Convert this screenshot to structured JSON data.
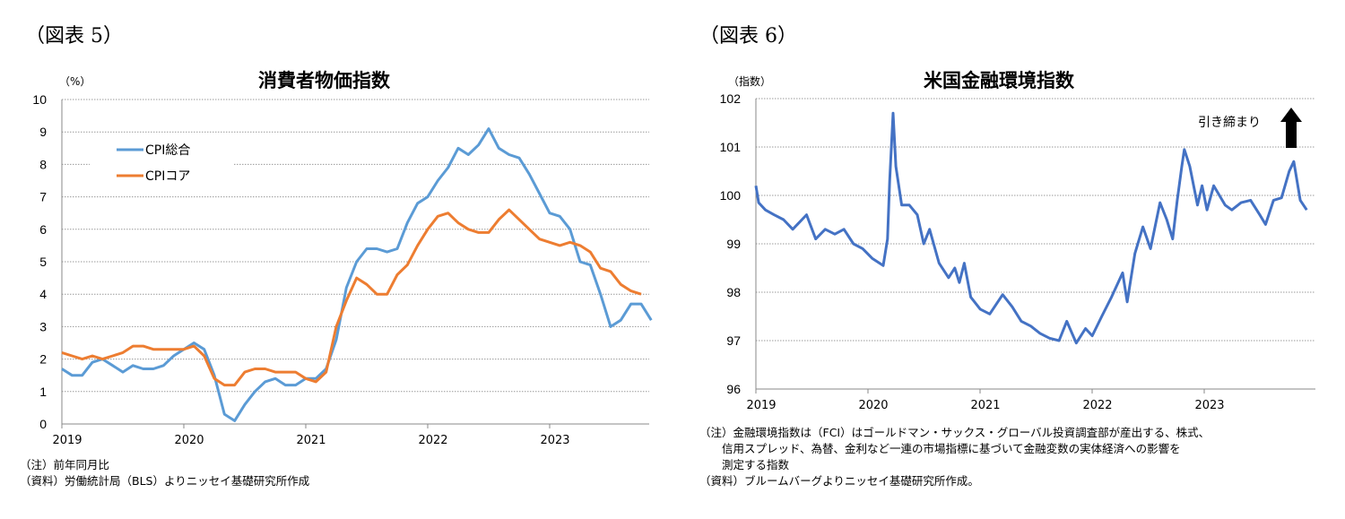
{
  "figures": [
    {
      "label": "（図表 5）",
      "notes": [
        "（注）前年同月比",
        "（資料）労働統計局（BLS）よりニッセイ基礎研究所作成"
      ]
    },
    {
      "label": "（図表 6）",
      "notes": [
        "（注）金融環境指数は（FCI）はゴールドマン・サックス・グローバル投資調査部が産出する、株式、",
        "　　信用スプレッド、為替、金利など一連の市場指標に基づいて金融変数の実体経済への影響を",
        "　　測定する指数",
        "（資料）ブルームバーグよりニッセイ基礎研究所作成。"
      ]
    }
  ],
  "chart_data": [
    {
      "type": "line",
      "title": "消費者物価指数",
      "ylabel": "（%）",
      "ylim": [
        0,
        10
      ],
      "yticks": [
        "0",
        "1",
        "2",
        "3",
        "4",
        "5",
        "6",
        "7",
        "8",
        "9",
        "10"
      ],
      "xticks": [
        "2019",
        "2020",
        "2021",
        "2022",
        "2023"
      ],
      "x_start": "2019-01",
      "x_unit": "month",
      "grid": true,
      "legend": "top-left",
      "series": [
        {
          "name": "CPI総合",
          "color": "#5B9BD5",
          "values": [
            1.7,
            1.5,
            1.5,
            1.9,
            2.0,
            1.8,
            1.6,
            1.8,
            1.7,
            1.7,
            1.8,
            2.1,
            2.3,
            2.5,
            2.3,
            1.5,
            0.3,
            0.1,
            0.6,
            1.0,
            1.3,
            1.4,
            1.2,
            1.2,
            1.4,
            1.4,
            1.7,
            2.6,
            4.2,
            5.0,
            5.4,
            5.4,
            5.3,
            5.4,
            6.2,
            6.8,
            7.0,
            7.5,
            7.9,
            8.5,
            8.3,
            8.6,
            9.1,
            8.5,
            8.3,
            8.2,
            7.7,
            7.1,
            6.5,
            6.4,
            6.0,
            5.0,
            4.9,
            4.0,
            3.0,
            3.2,
            3.7,
            3.7,
            3.2
          ]
        },
        {
          "name": "CPIコア",
          "color": "#ED7D31",
          "values": [
            2.2,
            2.1,
            2.0,
            2.1,
            2.0,
            2.1,
            2.2,
            2.4,
            2.4,
            2.3,
            2.3,
            2.3,
            2.3,
            2.4,
            2.1,
            1.4,
            1.2,
            1.2,
            1.6,
            1.7,
            1.7,
            1.6,
            1.6,
            1.6,
            1.4,
            1.3,
            1.6,
            3.0,
            3.8,
            4.5,
            4.3,
            4.0,
            4.0,
            4.6,
            4.9,
            5.5,
            6.0,
            6.4,
            6.5,
            6.2,
            6.0,
            5.9,
            5.9,
            6.3,
            6.6,
            6.3,
            6.0,
            5.7,
            5.6,
            5.5,
            5.6,
            5.5,
            5.3,
            4.8,
            4.7,
            4.3,
            4.1,
            4.0
          ]
        }
      ]
    },
    {
      "type": "line",
      "title": "米国金融環境指数",
      "ylabel": "（指数）",
      "ylim": [
        96,
        102
      ],
      "yticks": [
        "96",
        "97",
        "98",
        "99",
        "100",
        "101",
        "102"
      ],
      "xticks": [
        "2019",
        "2020",
        "2021",
        "2022",
        "2023"
      ],
      "grid": true,
      "annotation": "引き締まり",
      "color": "#4472C4",
      "series": [
        {
          "points": [
            [
              "2019-01-01",
              100.2
            ],
            [
              "2019-01-10",
              99.85
            ],
            [
              "2019-02-01",
              99.7
            ],
            [
              "2019-03-01",
              99.6
            ],
            [
              "2019-04-01",
              99.5
            ],
            [
              "2019-05-01",
              99.3
            ],
            [
              "2019-06-15",
              99.6
            ],
            [
              "2019-07-15",
              99.1
            ],
            [
              "2019-08-15",
              99.3
            ],
            [
              "2019-09-15",
              99.2
            ],
            [
              "2019-10-15",
              99.3
            ],
            [
              "2019-11-15",
              99.0
            ],
            [
              "2019-12-15",
              98.9
            ],
            [
              "2020-01-15",
              98.7
            ],
            [
              "2020-02-20",
              98.55
            ],
            [
              "2020-03-05",
              99.1
            ],
            [
              "2020-03-12",
              100.3
            ],
            [
              "2020-03-23",
              101.7
            ],
            [
              "2020-04-01",
              100.6
            ],
            [
              "2020-04-20",
              99.8
            ],
            [
              "2020-05-15",
              99.8
            ],
            [
              "2020-06-10",
              99.6
            ],
            [
              "2020-07-01",
              99.0
            ],
            [
              "2020-07-20",
              99.3
            ],
            [
              "2020-08-20",
              98.6
            ],
            [
              "2020-09-20",
              98.3
            ],
            [
              "2020-10-10",
              98.5
            ],
            [
              "2020-10-25",
              98.2
            ],
            [
              "2020-11-10",
              98.6
            ],
            [
              "2020-12-01",
              97.9
            ],
            [
              "2021-01-01",
              97.65
            ],
            [
              "2021-02-01",
              97.55
            ],
            [
              "2021-03-15",
              97.95
            ],
            [
              "2021-04-15",
              97.7
            ],
            [
              "2021-05-15",
              97.4
            ],
            [
              "2021-06-15",
              97.3
            ],
            [
              "2021-07-15",
              97.15
            ],
            [
              "2021-08-15",
              97.05
            ],
            [
              "2021-09-15",
              97.0
            ],
            [
              "2021-10-10",
              97.4
            ],
            [
              "2021-11-10",
              96.95
            ],
            [
              "2021-12-10",
              97.25
            ],
            [
              "2022-01-01",
              97.1
            ],
            [
              "2022-02-01",
              97.5
            ],
            [
              "2022-03-05",
              97.9
            ],
            [
              "2022-04-10",
              98.4
            ],
            [
              "2022-04-25",
              97.8
            ],
            [
              "2022-05-20",
              98.8
            ],
            [
              "2022-06-15",
              99.35
            ],
            [
              "2022-07-10",
              98.9
            ],
            [
              "2022-08-10",
              99.85
            ],
            [
              "2022-09-01",
              99.5
            ],
            [
              "2022-09-20",
              99.1
            ],
            [
              "2022-10-05",
              99.9
            ],
            [
              "2022-10-20",
              100.6
            ],
            [
              "2022-10-28",
              100.95
            ],
            [
              "2022-11-15",
              100.6
            ],
            [
              "2022-12-10",
              99.8
            ],
            [
              "2022-12-25",
              100.2
            ],
            [
              "2023-01-10",
              99.7
            ],
            [
              "2023-02-01",
              100.2
            ],
            [
              "2023-03-10",
              99.8
            ],
            [
              "2023-04-01",
              99.7
            ],
            [
              "2023-05-01",
              99.85
            ],
            [
              "2023-06-01",
              99.9
            ],
            [
              "2023-07-01",
              99.6
            ],
            [
              "2023-07-20",
              99.4
            ],
            [
              "2023-08-15",
              99.9
            ],
            [
              "2023-09-10",
              99.95
            ],
            [
              "2023-10-05",
              100.5
            ],
            [
              "2023-10-20",
              100.7
            ],
            [
              "2023-11-10",
              99.9
            ],
            [
              "2023-12-01",
              99.7
            ]
          ]
        }
      ]
    }
  ]
}
